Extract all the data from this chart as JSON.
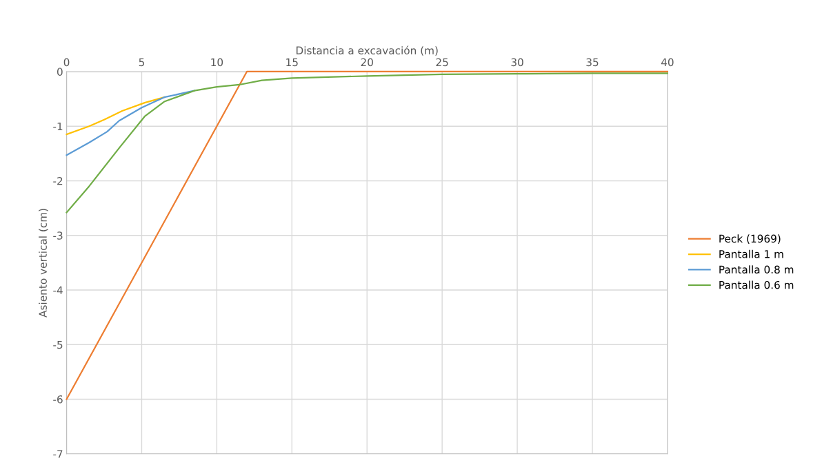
{
  "chart_data": {
    "type": "line",
    "xlabel": "Distancia a excavación (m)",
    "ylabel": "Asiento vertical (cm)",
    "xlim": [
      0,
      40
    ],
    "xticks": [
      0,
      5,
      10,
      15,
      20,
      25,
      30,
      35,
      40
    ],
    "ylim": [
      -7,
      0
    ],
    "yticks": [
      -7,
      -6,
      -5,
      -4,
      -3,
      -2,
      -1,
      0
    ],
    "grid": true,
    "legend": "right",
    "marker": "none",
    "line_style": "solid",
    "series": [
      {
        "name": "Peck (1969)",
        "color": "#ed7d31",
        "x": [
          0,
          12,
          40
        ],
        "values": [
          -6,
          0,
          0
        ]
      },
      {
        "name": "Pantalla 1 m",
        "color": "#ffc000",
        "x": [
          0,
          1.5,
          2.5,
          3.7,
          5.2,
          6.5
        ],
        "values": [
          -1.15,
          -1.0,
          -0.88,
          -0.72,
          -0.57,
          -0.47
        ]
      },
      {
        "name": "Pantalla 0.8 m",
        "color": "#5b9bd5",
        "x": [
          0,
          1.5,
          2.7,
          3.5,
          5,
          6.5,
          8.5
        ],
        "values": [
          -1.53,
          -1.3,
          -1.1,
          -0.9,
          -0.66,
          -0.47,
          -0.35
        ]
      },
      {
        "name": "Pantalla 0.6 m",
        "color": "#70ad47",
        "x": [
          0,
          1.5,
          3.5,
          5.2,
          6.5,
          8.5,
          10,
          11.5,
          13,
          15,
          20,
          25,
          30,
          35,
          40
        ],
        "values": [
          -2.58,
          -2.1,
          -1.4,
          -0.82,
          -0.55,
          -0.35,
          -0.28,
          -0.24,
          -0.16,
          -0.12,
          -0.08,
          -0.05,
          -0.04,
          -0.03,
          -0.03
        ]
      }
    ]
  }
}
